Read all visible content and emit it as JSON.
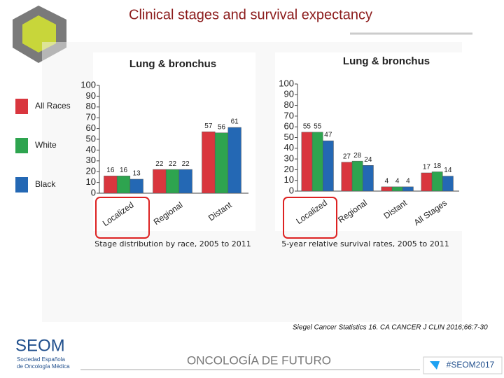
{
  "slide_title": "Clinical stages and survival expectancy",
  "chart_data": [
    {
      "type": "bar",
      "title": "Lung & bronchus",
      "caption": "Stage distribution by race, 2005 to 2011",
      "categories": [
        "Localized",
        "Regional",
        "Distant"
      ],
      "series": [
        {
          "name": "All Races",
          "color": "#d9363e",
          "values": [
            16,
            22,
            57
          ]
        },
        {
          "name": "White",
          "color": "#2ea44f",
          "values": [
            16,
            22,
            56
          ]
        },
        {
          "name": "Black",
          "color": "#2468b4",
          "values": [
            13,
            22,
            61
          ]
        }
      ],
      "ylim": [
        0,
        100
      ],
      "yticks": [
        0,
        10,
        20,
        30,
        40,
        50,
        60,
        70,
        80,
        90,
        100
      ]
    },
    {
      "type": "bar",
      "title": "Lung & bronchus",
      "caption": "5-year relative survival rates, 2005 to 2011",
      "categories": [
        "Localized",
        "Regional",
        "Distant",
        "All Stages"
      ],
      "series": [
        {
          "color": "#d9363e",
          "values": [
            55,
            27,
            4,
            17
          ]
        },
        {
          "color": "#2ea44f",
          "values": [
            55,
            28,
            4,
            18
          ]
        },
        {
          "color": "#2468b4",
          "values": [
            47,
            24,
            4,
            14
          ]
        }
      ],
      "ylim": [
        0,
        100
      ],
      "yticks": [
        0,
        10,
        20,
        30,
        40,
        50,
        60,
        70,
        80,
        90,
        100
      ]
    }
  ],
  "citation": "Siegel Cancer Statistics 16. CA CANCER J CLIN 2016;66:7-30",
  "footer": {
    "logo": "SEOM",
    "society": [
      "Sociedad Española",
      "de Oncología Médica"
    ],
    "motto": "ONCOLOGÍA DE FUTURO",
    "hashtag": "#SEOM2017"
  }
}
